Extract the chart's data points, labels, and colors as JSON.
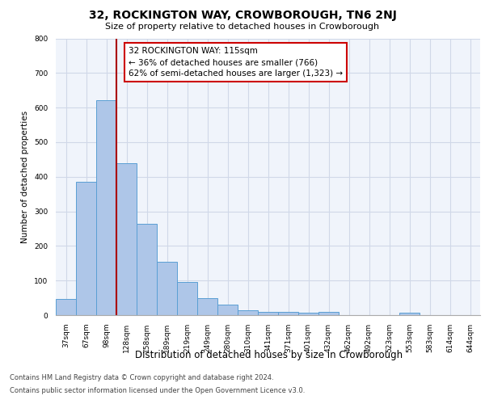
{
  "title": "32, ROCKINGTON WAY, CROWBOROUGH, TN6 2NJ",
  "subtitle": "Size of property relative to detached houses in Crowborough",
  "xlabel": "Distribution of detached houses by size in Crowborough",
  "ylabel": "Number of detached properties",
  "categories": [
    "37sqm",
    "67sqm",
    "98sqm",
    "128sqm",
    "158sqm",
    "189sqm",
    "219sqm",
    "249sqm",
    "280sqm",
    "310sqm",
    "341sqm",
    "371sqm",
    "401sqm",
    "432sqm",
    "462sqm",
    "492sqm",
    "523sqm",
    "553sqm",
    "583sqm",
    "614sqm",
    "644sqm"
  ],
  "values": [
    47,
    385,
    622,
    440,
    265,
    155,
    95,
    50,
    30,
    15,
    10,
    10,
    8,
    10,
    0,
    0,
    0,
    8,
    0,
    0,
    0
  ],
  "bar_color": "#aec6e8",
  "bar_edge_color": "#5a9fd4",
  "vline_x_index": 2.5,
  "vline_color": "#aa0000",
  "annotation_text": "32 ROCKINGTON WAY: 115sqm\n← 36% of detached houses are smaller (766)\n62% of semi-detached houses are larger (1,323) →",
  "annotation_box_color": "#ffffff",
  "annotation_box_edge_color": "#cc0000",
  "ylim": [
    0,
    800
  ],
  "yticks": [
    0,
    100,
    200,
    300,
    400,
    500,
    600,
    700,
    800
  ],
  "footer1": "Contains HM Land Registry data © Crown copyright and database right 2024.",
  "footer2": "Contains public sector information licensed under the Open Government Licence v3.0.",
  "bg_color": "#f0f4fb",
  "grid_color": "#d0d8e8",
  "title_fontsize": 10,
  "subtitle_fontsize": 8,
  "tick_fontsize": 6.5,
  "ylabel_fontsize": 7.5,
  "xlabel_fontsize": 8.5,
  "annotation_fontsize": 7.5,
  "footer_fontsize": 6
}
